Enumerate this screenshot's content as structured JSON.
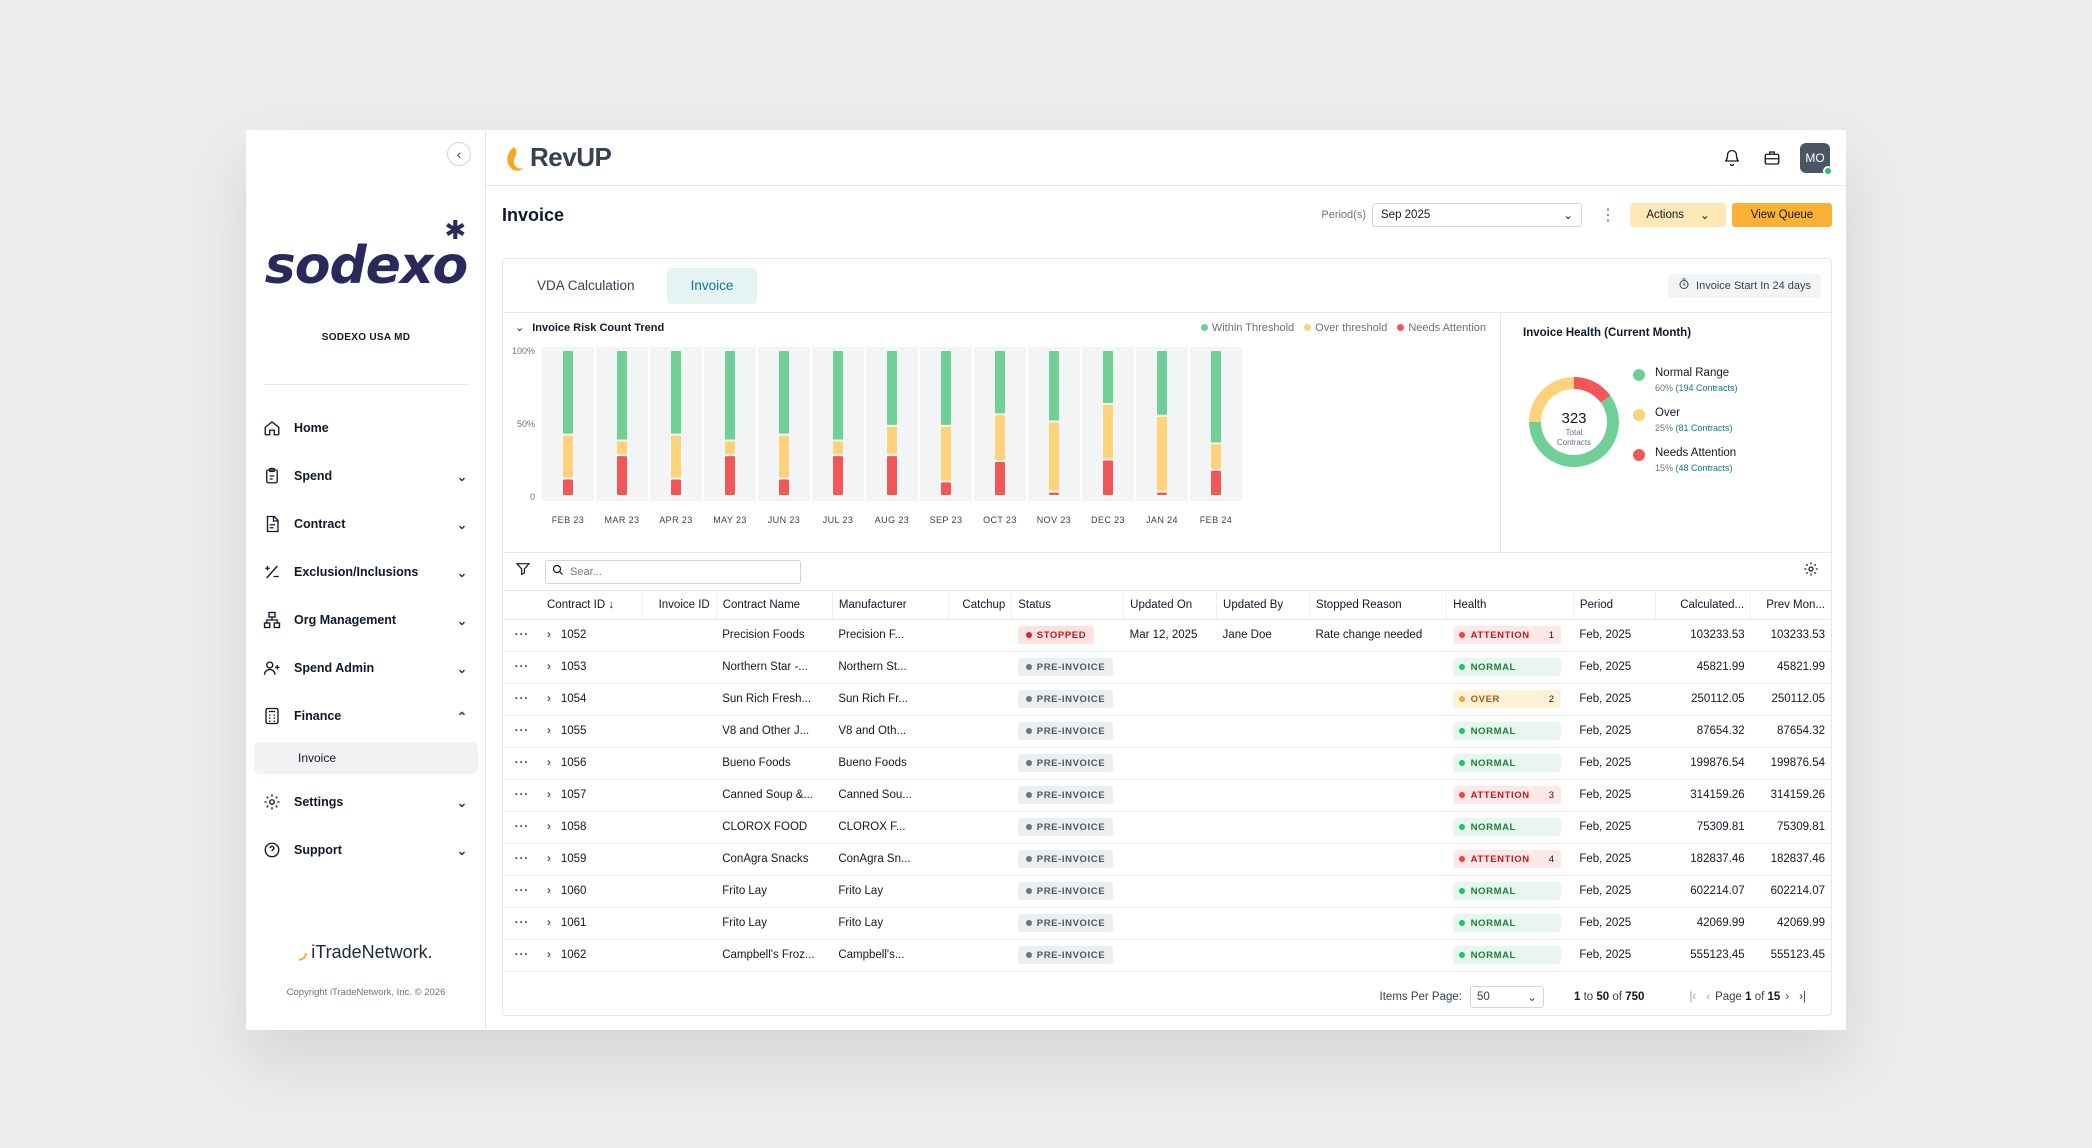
{
  "sidebar": {
    "brand": "sodexo",
    "org_name": "SODEXO USA MD",
    "nav": [
      {
        "label": "Home",
        "icon": "home-icon"
      },
      {
        "label": "Spend",
        "icon": "clipboard-icon"
      },
      {
        "label": "Contract",
        "icon": "document-icon"
      },
      {
        "label": "Exclusion/Inclusions",
        "icon": "plus-minus-icon"
      },
      {
        "label": "Org Management",
        "icon": "org-chart-icon"
      },
      {
        "label": "Spend Admin",
        "icon": "user-add-icon"
      },
      {
        "label": "Finance",
        "icon": "calculator-icon"
      },
      {
        "label": "Invoice",
        "icon": ""
      },
      {
        "label": "Settings",
        "icon": "gear-icon"
      },
      {
        "label": "Support",
        "icon": "help-circle-icon"
      }
    ],
    "footer_logo": "iTradeNetwork.",
    "copyright": "Copyright iTradeNetwork, Inc. © 2026"
  },
  "topbar": {
    "app_name": "RevUP",
    "avatar": "MO"
  },
  "page": {
    "title": "Invoice",
    "period_label": "Period(s)",
    "period_value": "Sep 2025",
    "actions_label": "Actions",
    "queue_label": "View Queue"
  },
  "tabs": {
    "items": [
      "VDA Calculation",
      "Invoice"
    ],
    "active": "Invoice",
    "notice": "Invoice Start In 24 days"
  },
  "colors": {
    "green": "#6fcf97",
    "amber": "#fdd27a",
    "red": "#f25757",
    "accent": "#f9b233",
    "teal": "#0e7490"
  },
  "chart_data": [
    {
      "type": "bar",
      "title": "Invoice Risk Count  Trend",
      "stacked": true,
      "categories": [
        "FEB 23",
        "MAR 23",
        "APR 23",
        "MAY 23",
        "JUN 23",
        "JUL 23",
        "AUG 23",
        "SEP 23",
        "OCT 23",
        "NOV 23",
        "DEC 23",
        "JAN 24",
        "FEB 24"
      ],
      "series": [
        {
          "name": "Needs Attention",
          "values": [
            12,
            28,
            12,
            28,
            12,
            28,
            28,
            10,
            24,
            3,
            25,
            3,
            18
          ]
        },
        {
          "name": "Over threshold",
          "values": [
            30,
            10,
            30,
            10,
            30,
            10,
            20,
            38,
            32,
            48,
            38,
            52,
            18
          ]
        },
        {
          "name": "Within Threshold",
          "values": [
            58,
            62,
            58,
            62,
            58,
            62,
            52,
            52,
            44,
            49,
            37,
            45,
            64
          ]
        }
      ],
      "ytick_labels": [
        "100%",
        "50%",
        "0"
      ],
      "ylim": [
        0,
        100
      ],
      "grid": false,
      "legend": "top-right"
    },
    {
      "type": "pie",
      "donut": true,
      "title": "Invoice Health (Current Month)",
      "center_value": "323",
      "center_label": "Total Contracts",
      "slices": [
        {
          "label": "Normal Range",
          "value": 60,
          "pct": "60%",
          "detail": "(194 Contracts)"
        },
        {
          "label": "Over",
          "value": 25,
          "pct": "25%",
          "detail": "(81 Contracts)"
        },
        {
          "label": "Needs Attention",
          "value": 15,
          "pct": "15%",
          "detail": "(48 Contracts)"
        }
      ],
      "legend": "right"
    }
  ],
  "table": {
    "search_placeholder": "Sear...",
    "columns": [
      "",
      "Contract ID",
      "Invoice ID",
      "Contract Name",
      "Manufacturer",
      "Catchup",
      "Status",
      "Updated On",
      "Updated By",
      "Stopped Reason",
      "Health",
      "Period",
      "Calculated...",
      "Prev Mon..."
    ],
    "rows": [
      {
        "id": "1052",
        "invoice": "",
        "name": "Precision Foods",
        "mfr": "Precision F...",
        "catchup": "",
        "status": "STOPPED",
        "status_type": "stopped",
        "updated_on": "Mar 12, 2025",
        "updated_by": "Jane Doe",
        "reason": "Rate change needed",
        "health": "ATTENTION",
        "health_type": "attention",
        "health_count": "1",
        "period": "Feb, 2025",
        "calc": "103233.53",
        "prev": "103233.53"
      },
      {
        "id": "1053",
        "invoice": "",
        "name": "Northern Star -...",
        "mfr": "Northern St...",
        "catchup": "",
        "status": "PRE-INVOICE",
        "status_type": "pre",
        "updated_on": "",
        "updated_by": "",
        "reason": "",
        "health": "NORMAL",
        "health_type": "normal",
        "health_count": "",
        "period": "Feb, 2025",
        "calc": "45821.99",
        "prev": "45821.99"
      },
      {
        "id": "1054",
        "invoice": "",
        "name": "Sun Rich Fresh...",
        "mfr": "Sun Rich Fr...",
        "catchup": "",
        "status": "PRE-INVOICE",
        "status_type": "pre",
        "updated_on": "",
        "updated_by": "",
        "reason": "",
        "health": "OVER",
        "health_type": "over",
        "health_count": "2",
        "period": "Feb, 2025",
        "calc": "250112.05",
        "prev": "250112.05"
      },
      {
        "id": "1055",
        "invoice": "",
        "name": "V8 and Other J...",
        "mfr": "V8 and Oth...",
        "catchup": "",
        "status": "PRE-INVOICE",
        "status_type": "pre",
        "updated_on": "",
        "updated_by": "",
        "reason": "",
        "health": "NORMAL",
        "health_type": "normal",
        "health_count": "",
        "period": "Feb, 2025",
        "calc": "87654.32",
        "prev": "87654.32"
      },
      {
        "id": "1056",
        "invoice": "",
        "name": "Bueno Foods",
        "mfr": "Bueno Foods",
        "catchup": "",
        "status": "PRE-INVOICE",
        "status_type": "pre",
        "updated_on": "",
        "updated_by": "",
        "reason": "",
        "health": "NORMAL",
        "health_type": "normal",
        "health_count": "",
        "period": "Feb, 2025",
        "calc": "199876.54",
        "prev": "199876.54"
      },
      {
        "id": "1057",
        "invoice": "",
        "name": "Canned Soup &...",
        "mfr": "Canned Sou...",
        "catchup": "",
        "status": "PRE-INVOICE",
        "status_type": "pre",
        "updated_on": "",
        "updated_by": "",
        "reason": "",
        "health": "ATTENTION",
        "health_type": "attention",
        "health_count": "3",
        "period": "Feb, 2025",
        "calc": "314159.26",
        "prev": "314159.26"
      },
      {
        "id": "1058",
        "invoice": "",
        "name": "CLOROX FOOD",
        "mfr": "CLOROX F...",
        "catchup": "",
        "status": "PRE-INVOICE",
        "status_type": "pre",
        "updated_on": "",
        "updated_by": "",
        "reason": "",
        "health": "NORMAL",
        "health_type": "normal",
        "health_count": "",
        "period": "Feb, 2025",
        "calc": "75309.81",
        "prev": "75309.81"
      },
      {
        "id": "1059",
        "invoice": "",
        "name": "ConAgra Snacks",
        "mfr": "ConAgra Sn...",
        "catchup": "",
        "status": "PRE-INVOICE",
        "status_type": "pre",
        "updated_on": "",
        "updated_by": "",
        "reason": "",
        "health": "ATTENTION",
        "health_type": "attention",
        "health_count": "4",
        "period": "Feb, 2025",
        "calc": "182837.46",
        "prev": "182837.46"
      },
      {
        "id": "1060",
        "invoice": "",
        "name": "Frito Lay",
        "mfr": "Frito Lay",
        "catchup": "",
        "status": "PRE-INVOICE",
        "status_type": "pre",
        "updated_on": "",
        "updated_by": "",
        "reason": "",
        "health": "NORMAL",
        "health_type": "normal",
        "health_count": "",
        "period": "Feb, 2025",
        "calc": "602214.07",
        "prev": "602214.07"
      },
      {
        "id": "1061",
        "invoice": "",
        "name": "Frito Lay",
        "mfr": "Frito Lay",
        "catchup": "",
        "status": "PRE-INVOICE",
        "status_type": "pre",
        "updated_on": "",
        "updated_by": "",
        "reason": "",
        "health": "NORMAL",
        "health_type": "normal",
        "health_count": "",
        "period": "Feb, 2025",
        "calc": "42069.99",
        "prev": "42069.99"
      },
      {
        "id": "1062",
        "invoice": "",
        "name": "Campbell's Froz...",
        "mfr": "Campbell's...",
        "catchup": "",
        "status": "PRE-INVOICE",
        "status_type": "pre",
        "updated_on": "",
        "updated_by": "",
        "reason": "",
        "health": "NORMAL",
        "health_type": "normal",
        "health_count": "",
        "period": "Feb, 2025",
        "calc": "555123.45",
        "prev": "555123.45"
      }
    ]
  },
  "pager": {
    "items_label": "Items Per Page:",
    "per_page": "50",
    "from": "1",
    "to_word": "to",
    "to": "50",
    "of_word": "of",
    "total": "750",
    "page_word": "Page",
    "page": "1",
    "page_of": "of",
    "pages": "15"
  }
}
